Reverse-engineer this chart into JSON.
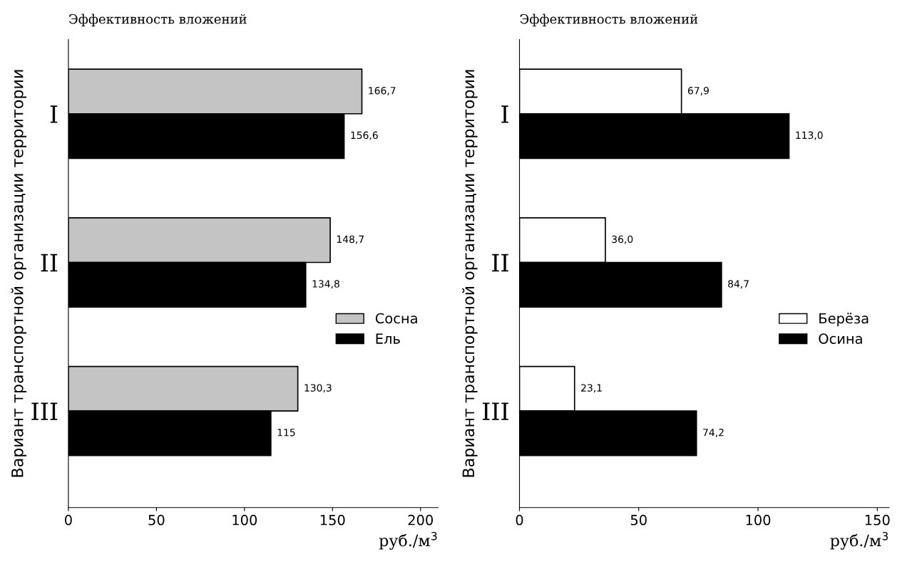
{
  "chart_data": [
    {
      "type": "bar",
      "orientation": "horizontal",
      "title": "Эффективность вложений",
      "xlabel": "руб./м$^{3}$",
      "ylabel": "Вариант транспортной организации территории",
      "categories": [
        "I",
        "II",
        "III"
      ],
      "xlim": [
        0,
        210
      ],
      "xticks": [
        0,
        50,
        100,
        150,
        200
      ],
      "grid": false,
      "legend": "right",
      "series": [
        {
          "name": "Сосна",
          "color": "#c4c4c4",
          "values": [
            166.7,
            148.7,
            130.3
          ],
          "value_labels": [
            "166,7",
            "148,7",
            "130,3"
          ]
        },
        {
          "name": "Ель",
          "color": "#000000",
          "values": [
            156.6,
            134.8,
            115
          ],
          "value_labels": [
            "156,6",
            "134,8",
            "115"
          ]
        }
      ]
    },
    {
      "type": "bar",
      "orientation": "horizontal",
      "title": "Эффективность вложений",
      "xlabel": "руб./м$^{3}$",
      "ylabel": "Вариант транспортной организации территории",
      "categories": [
        "I",
        "II",
        "III"
      ],
      "xlim": [
        0,
        155
      ],
      "xticks": [
        0,
        50,
        100,
        150
      ],
      "grid": false,
      "legend": "right",
      "series": [
        {
          "name": "Берёза",
          "color": "#ffffff",
          "values": [
            67.9,
            36.0,
            23.1
          ],
          "value_labels": [
            "67,9",
            "36,0",
            "23,1"
          ]
        },
        {
          "name": "Осина",
          "color": "#000000",
          "values": [
            113.0,
            84.7,
            74.2
          ],
          "value_labels": [
            "113,0",
            "84,7",
            "74,2"
          ]
        }
      ]
    }
  ]
}
